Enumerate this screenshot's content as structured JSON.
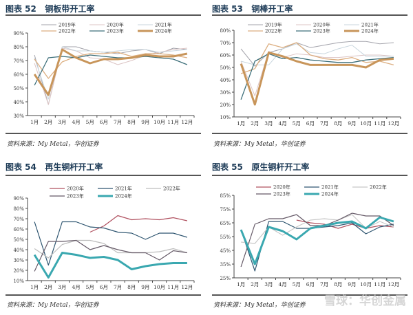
{
  "source_text": "资料来源：My Metal，华创证券",
  "watermark": "雪球：华创金属",
  "chart_data": [
    {
      "type": "line",
      "title": "图表 52   铜板带开工率",
      "categories": [
        "1月",
        "2月",
        "3月",
        "4月",
        "5月",
        "6月",
        "7月",
        "8月",
        "9月",
        "10月",
        "11月",
        "12月"
      ],
      "ylim": [
        30,
        90
      ],
      "yticks": [
        30,
        40,
        50,
        60,
        70,
        80,
        90
      ],
      "yunit": "%",
      "series": [
        {
          "name": "2019年",
          "color": "#a3a3ab",
          "width": 1,
          "values": [
            74,
            38,
            80,
            80,
            77,
            76,
            75,
            77,
            78,
            75,
            79,
            78
          ]
        },
        {
          "name": "2020年",
          "color": "#dcc4c4",
          "width": 1,
          "values": [
            68,
            38,
            79,
            77,
            72,
            71,
            67,
            70,
            74,
            76,
            78,
            79
          ]
        },
        {
          "name": "2021年",
          "color": "#c9d6de",
          "width": 1,
          "values": [
            72,
            42,
            80,
            77,
            77,
            76,
            77,
            78,
            78,
            76,
            77,
            78
          ]
        },
        {
          "name": "2022年",
          "color": "#dcae80",
          "width": 1.3,
          "values": [
            71,
            57,
            69,
            73,
            75,
            75,
            76,
            73,
            75,
            75,
            74,
            72
          ]
        },
        {
          "name": "2023年",
          "color": "#3d6f7a",
          "width": 1.3,
          "values": [
            52,
            72,
            73,
            72,
            74,
            73,
            72,
            72,
            73,
            72,
            71,
            67
          ]
        },
        {
          "name": "2024年",
          "color": "#c8955a",
          "width": 3,
          "values": [
            60,
            45,
            78,
            72,
            68,
            71,
            71,
            72,
            74,
            73,
            73,
            75
          ]
        }
      ]
    },
    {
      "type": "line",
      "title": "图表 53   铜棒开工率",
      "categories": [
        "1月",
        "2月",
        "3月",
        "4月",
        "5月",
        "6月",
        "7月",
        "8月",
        "9月",
        "10月",
        "11月",
        "12月"
      ],
      "ylim": [
        10,
        80
      ],
      "yticks": [
        10,
        20,
        30,
        40,
        50,
        60,
        70,
        80
      ],
      "yunit": "%",
      "series": [
        {
          "name": "2019年",
          "color": "#a3a3ab",
          "width": 1,
          "values": [
            65,
            51,
            62,
            65,
            70,
            66,
            68,
            70,
            71,
            71,
            69,
            70
          ]
        },
        {
          "name": "2020年",
          "color": "#dcc4c4",
          "width": 1,
          "values": [
            55,
            27,
            63,
            58,
            61,
            60,
            58,
            58,
            59,
            60,
            60,
            59
          ]
        },
        {
          "name": "2021年",
          "color": "#c9d6de",
          "width": 1,
          "values": [
            55,
            52,
            52,
            65,
            69,
            62,
            61,
            65,
            68,
            59,
            59,
            59
          ]
        },
        {
          "name": "2022年",
          "color": "#dcae80",
          "width": 1.3,
          "values": [
            45,
            49,
            69,
            66,
            70,
            60,
            57,
            56,
            58,
            54,
            55,
            52
          ]
        },
        {
          "name": "2023年",
          "color": "#3d6f7a",
          "width": 1.3,
          "values": [
            24,
            55,
            61,
            57,
            58,
            56,
            55,
            54,
            54,
            56,
            57,
            58
          ]
        },
        {
          "name": "2024年",
          "color": "#c8955a",
          "width": 3,
          "values": [
            53,
            20,
            62,
            59,
            55,
            52,
            52,
            52,
            52,
            50,
            56,
            57
          ]
        }
      ]
    },
    {
      "type": "line",
      "title": "图表 54   再生铜杆开工率",
      "categories": [
        "1月",
        "2月",
        "3月",
        "4月",
        "5月",
        "6月",
        "7月",
        "8月",
        "9月",
        "10月",
        "11月",
        "12月"
      ],
      "ylim": [
        10,
        90
      ],
      "yticks": [
        10,
        20,
        30,
        40,
        50,
        60,
        70,
        80,
        90
      ],
      "yunit": "%",
      "series": [
        {
          "name": "2020年",
          "color": "#b0505f",
          "width": 1.2,
          "values": [
            null,
            null,
            null,
            null,
            57,
            63,
            73,
            69,
            70,
            69,
            71,
            68
          ]
        },
        {
          "name": "2021年",
          "color": "#2e5570",
          "width": 1.2,
          "values": [
            67,
            25,
            67,
            67,
            62,
            61,
            57,
            56,
            50,
            56,
            56,
            52
          ]
        },
        {
          "name": "2022年",
          "color": "#bdbdbd",
          "width": 1.2,
          "values": [
            41,
            32,
            45,
            49,
            49,
            46,
            37,
            37,
            37,
            38,
            41,
            37
          ]
        },
        {
          "name": "2023年",
          "color": "#645866",
          "width": 1.2,
          "values": [
            19,
            48,
            48,
            49,
            40,
            44,
            40,
            37,
            37,
            30,
            39,
            37
          ]
        },
        {
          "name": "2024年",
          "color": "#3aa8b0",
          "width": 3,
          "values": [
            35,
            13,
            37,
            35,
            32,
            33,
            30,
            21,
            24,
            26,
            27,
            27
          ]
        }
      ]
    },
    {
      "type": "line",
      "title": "图表 55   原生铜杆开工率",
      "categories": [
        "1月",
        "2月",
        "3月",
        "4月",
        "5月",
        "6月",
        "7月",
        "8月",
        "9月",
        "10月",
        "11月",
        "12月"
      ],
      "ylim": [
        25,
        85
      ],
      "yticks": [
        25,
        35,
        45,
        55,
        65,
        75,
        85
      ],
      "yunit": "%",
      "series": [
        {
          "name": "2020年",
          "color": "#b0505f",
          "width": 1.2,
          "values": [
            null,
            null,
            null,
            null,
            67,
            65,
            64,
            61,
            64,
            61,
            63,
            62
          ]
        },
        {
          "name": "2021年",
          "color": "#2e5570",
          "width": 1.2,
          "values": [
            60,
            30,
            66,
            66,
            61,
            61,
            62,
            63,
            65,
            57,
            62,
            64
          ]
        },
        {
          "name": "2022年",
          "color": "#c8c8c8",
          "width": 1.2,
          "values": [
            51,
            50,
            62,
            56,
            62,
            67,
            68,
            67,
            71,
            61,
            66,
            62
          ]
        },
        {
          "name": "2023年",
          "color": "#645866",
          "width": 1.2,
          "values": [
            33,
            64,
            68,
            68,
            71,
            63,
            63,
            67,
            72,
            70,
            70,
            63
          ]
        },
        {
          "name": "2024年",
          "color": "#3aa8b0",
          "width": 3,
          "values": [
            60,
            35,
            62,
            59,
            53,
            61,
            63,
            65,
            66,
            61,
            69,
            66
          ]
        }
      ]
    }
  ]
}
